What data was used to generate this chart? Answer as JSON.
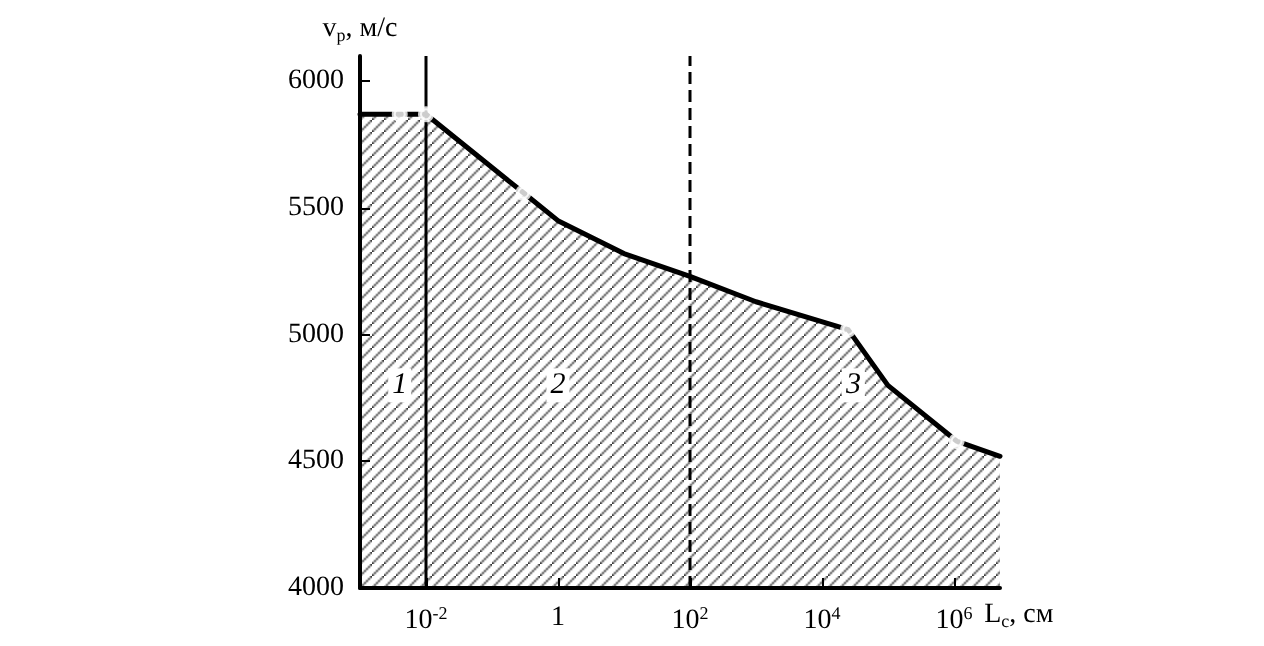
{
  "chart_data": {
    "type": "area",
    "xlabel": "L$_{с}$, см",
    "ylabel": "v$_{p}$, м/с",
    "log": "x",
    "xlim": [
      0.001,
      5000000
    ],
    "ylim": [
      4000,
      6100
    ],
    "xticks": [
      {
        "value": 0.01,
        "label": "10$^{-2}$"
      },
      1,
      {
        "value": 100,
        "label": "10$^{2}$"
      },
      {
        "value": 10000,
        "label": "10$^{4}$"
      },
      {
        "value": 1000000,
        "label": "10$^{6}$"
      }
    ],
    "yticks": [
      4000,
      4500,
      5000,
      5500,
      6000
    ],
    "grid": false,
    "series": [
      {
        "color": "#000000",
        "marker": "none",
        "x": [
          0.001,
          0.004,
          0.01,
          0.3,
          1,
          10,
          100,
          1000,
          25000,
          100000,
          1100000,
          5000000
        ],
        "values": [
          5870,
          5870,
          5870,
          5560,
          5450,
          5320,
          5230,
          5130,
          5020,
          4800,
          4580,
          4520
        ]
      },
      {
        "type": "scatter",
        "color": "#ffffff",
        "marker": "circle",
        "x": [
          0.004,
          0.01,
          0.3,
          25000,
          1100000
        ],
        "values": [
          5870,
          5870,
          5560,
          5020,
          4580
        ]
      }
    ],
    "ref_lines": [
      {
        "axis": "x",
        "value": 0.01,
        "line_style": "solid",
        "color": "#000000"
      },
      {
        "axis": "x",
        "value": 100,
        "line_style": "dashed",
        "color": "#000000"
      }
    ],
    "annotations": [
      {
        "text": "1",
        "x": 0.004,
        "y": 4800
      },
      {
        "text": "2",
        "x": 1,
        "y": 4800
      },
      {
        "text": "3",
        "x": 30000,
        "y": 4800
      }
    ]
  }
}
